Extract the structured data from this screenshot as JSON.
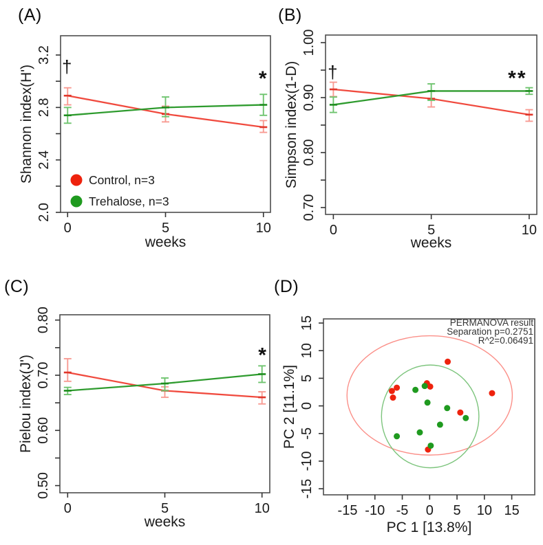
{
  "chart_data": [
    {
      "id": "A",
      "panel_label": "(A)",
      "type": "line",
      "xlabel": "weeks",
      "ylabel": "Shannon index(H')",
      "x": [
        0,
        5,
        10
      ],
      "xticks": [
        0,
        5,
        10
      ],
      "xtick_labels": [
        "0",
        "5",
        "10"
      ],
      "yticks": [
        2.0,
        2.4,
        2.8,
        3.2
      ],
      "ytick_labels": [
        "2.0",
        "2.4",
        "2.8",
        "3.2"
      ],
      "ytick_minor": [
        2.2,
        2.6,
        3.0
      ],
      "xlim": [
        -0.36,
        10.36
      ],
      "ylim": [
        2.0,
        3.347
      ],
      "grid": false,
      "series": [
        {
          "name": "Control, n=3",
          "line_color": "#f04a3e",
          "marker_color": "#e0362a",
          "err_color": "#f89b93",
          "values": [
            2.89,
            2.75,
            2.65
          ],
          "err_lo": [
            2.82,
            2.69,
            2.61
          ],
          "err_hi": [
            2.95,
            2.81,
            2.7
          ]
        },
        {
          "name": "Trehalose, n=3",
          "line_color": "#2e9b2e",
          "marker_color": "#1d8c1d",
          "err_color": "#6fc46f",
          "values": [
            2.74,
            2.8,
            2.82
          ],
          "err_lo": [
            2.68,
            2.73,
            2.74
          ],
          "err_hi": [
            2.8,
            2.88,
            2.9
          ]
        }
      ],
      "annotations": [
        {
          "text": "†",
          "x": 0,
          "y": 3.11,
          "size": 26,
          "bold": false
        },
        {
          "text": "*",
          "x": 10,
          "y": 3.02,
          "size": 30,
          "bold": true
        }
      ],
      "legend": {
        "position": "bottom-left",
        "items": [
          {
            "label": "Control, n=3",
            "color": "#ee220d"
          },
          {
            "label": "Trehalose, n=3",
            "color": "#1f9a1f"
          }
        ]
      }
    },
    {
      "id": "B",
      "panel_label": "(B)",
      "type": "line",
      "xlabel": "weeks",
      "ylabel": "Simpson index(1-D)",
      "x": [
        0,
        5,
        10
      ],
      "xticks": [
        0,
        5,
        10
      ],
      "xtick_labels": [
        "0",
        "5",
        "10"
      ],
      "yticks": [
        0.7,
        0.8,
        0.9,
        1.0
      ],
      "ytick_labels": [
        "0.70",
        "0.80",
        "0.90",
        "1.00"
      ],
      "ytick_minor": [
        0.75,
        0.85,
        0.95
      ],
      "xlim": [
        -0.4,
        10.39
      ],
      "ylim": [
        0.6875,
        1.0138
      ],
      "grid": false,
      "series": [
        {
          "name": "Control, n=3",
          "line_color": "#f04a3e",
          "marker_color": "#e0362a",
          "err_color": "#f89b93",
          "values": [
            0.915,
            0.898,
            0.869
          ],
          "err_lo": [
            0.902,
            0.883,
            0.857
          ],
          "err_hi": [
            0.928,
            0.912,
            0.878
          ]
        },
        {
          "name": "Trehalose, n=3",
          "line_color": "#2e9b2e",
          "marker_color": "#1d8c1d",
          "err_color": "#6fc46f",
          "values": [
            0.887,
            0.912,
            0.912
          ],
          "err_lo": [
            0.873,
            0.895,
            0.906
          ],
          "err_hi": [
            0.901,
            0.925,
            0.918
          ]
        }
      ],
      "annotations": [
        {
          "text": "†",
          "x": 0,
          "y": 0.946,
          "size": 26,
          "bold": false
        },
        {
          "text": "**",
          "x": 9.4,
          "y": 0.935,
          "size": 30,
          "bold": true
        }
      ],
      "legend": null
    },
    {
      "id": "C",
      "panel_label": "(C)",
      "type": "line",
      "xlabel": "weeks",
      "ylabel": "Pielou index(J')",
      "x": [
        0,
        5,
        10
      ],
      "xticks": [
        0,
        5,
        10
      ],
      "xtick_labels": [
        "0",
        "5",
        "10"
      ],
      "yticks": [
        0.5,
        0.6,
        0.7,
        0.8
      ],
      "ytick_labels": [
        "0.50",
        "0.60",
        "0.70",
        "0.80"
      ],
      "ytick_minor": [
        0.55,
        0.65,
        0.75
      ],
      "xlim": [
        -0.4,
        10.4
      ],
      "ylim": [
        0.487,
        0.8096
      ],
      "grid": false,
      "series": [
        {
          "name": "Control, n=3",
          "line_color": "#f04a3e",
          "marker_color": "#e0362a",
          "err_color": "#f89b93",
          "values": [
            0.705,
            0.672,
            0.66
          ],
          "err_lo": [
            0.689,
            0.66,
            0.648
          ],
          "err_hi": [
            0.73,
            0.679,
            0.67
          ]
        },
        {
          "name": "Trehalose, n=3",
          "line_color": "#2e9b2e",
          "marker_color": "#1d8c1d",
          "err_color": "#6fc46f",
          "values": [
            0.672,
            0.685,
            0.702
          ],
          "err_lo": [
            0.665,
            0.672,
            0.687
          ],
          "err_hi": [
            0.678,
            0.695,
            0.717
          ]
        }
      ],
      "annotations": [
        {
          "text": "*",
          "x": 10.05,
          "y": 0.736,
          "size": 30,
          "bold": true
        }
      ],
      "legend": null
    },
    {
      "id": "D",
      "panel_label": "(D)",
      "type": "scatter",
      "xlabel": "PC 1 [13.8%]",
      "ylabel": "PC 2 [11.1%]",
      "xticks": [
        -15,
        -10,
        -5,
        0,
        5,
        10,
        15
      ],
      "xtick_labels": [
        "-15",
        "-10",
        "-5",
        "0",
        "5",
        "10",
        "15"
      ],
      "yticks": [
        -15,
        -10,
        -5,
        0,
        5,
        10,
        15
      ],
      "ytick_labels": [
        "-15",
        "-10",
        "-5",
        "0",
        "5",
        "10",
        "15"
      ],
      "xlim": [
        -19.4,
        19.2
      ],
      "ylim": [
        -16.1,
        15.75
      ],
      "grid": false,
      "series": [
        {
          "name": "Control",
          "point_color": "#ee220d",
          "points": [
            [
              3.3,
              8.0
            ],
            [
              -6.9,
              2.7
            ],
            [
              -6.0,
              3.3
            ],
            [
              -6.7,
              1.5
            ],
            [
              -0.5,
              4.1
            ],
            [
              0.1,
              3.5
            ],
            [
              11.4,
              2.3
            ],
            [
              5.6,
              -1.2
            ],
            [
              -0.3,
              -7.9
            ]
          ],
          "ellipse": {
            "cx": 0.0,
            "cy": 1.9,
            "rx": 15.1,
            "ry": 10.8,
            "color": "#fb8f88"
          }
        },
        {
          "name": "Trehalose",
          "point_color": "#1f9a1f",
          "points": [
            [
              -2.6,
              2.9
            ],
            [
              -0.9,
              3.6
            ],
            [
              -0.4,
              0.6
            ],
            [
              3.2,
              -0.4
            ],
            [
              6.6,
              -2.2
            ],
            [
              1.9,
              -3.4
            ],
            [
              -1.8,
              -4.8
            ],
            [
              -6.0,
              -5.5
            ],
            [
              0.2,
              -7.2
            ]
          ],
          "ellipse": {
            "cx": 0.1,
            "cy": -1.9,
            "rx": 8.9,
            "ry": 9.3,
            "color": "#7cc47c"
          }
        }
      ],
      "annotation_lines": [
        "PERMANOVA result",
        "Separation p=0.2751",
        "R^2=0.06491"
      ]
    }
  ],
  "style_colors": {
    "box_stroke": "#4d4d4d",
    "tick_stroke": "#333333",
    "text": "#1a1a1a",
    "annotation_text": "#111111",
    "permanova_text": "#333333"
  }
}
